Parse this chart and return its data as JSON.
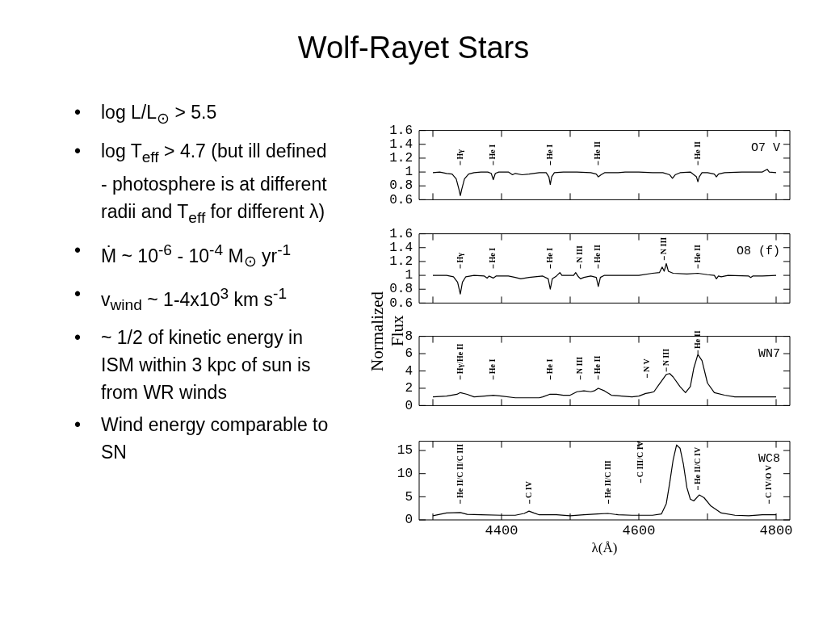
{
  "chart_data": [
    {
      "type": "other",
      "title": "Wolf-Rayet Stars",
      "annotations": [
        "• log L/L$_{⊙}$ > 5.5",
        "• log T$_{eff}$ > 4.7 (but ill defined - photosphere is at different radii and T$_{eff}$ for different λ)",
        "• Ṁ ~ 10$^{-6}$ - 10$^{-4}$ M$_{⊙}$ yr$^{-1}$",
        "• v$_{wind}$ ~ 1-4x10$^{3}$ km s$^{-1}$",
        "• ~ 1/2 of kinetic energy in ISM within 3 kpc of sun is from WR winds",
        "• Wind energy comparable to SN"
      ]
    },
    {
      "type": "line",
      "marker": "none",
      "tick_labels": "y",
      "xlim": [
        4280,
        4820
      ],
      "xticks": [
        {
          "value": 4300,
          "label": null
        },
        {
          "value": 4400,
          "label": null
        },
        {
          "value": 4500,
          "label": null
        },
        {
          "value": 4600,
          "label": null
        },
        {
          "value": 4700,
          "label": null
        },
        {
          "value": 4800,
          "label": null
        }
      ],
      "ylim": [
        0.6,
        1.6
      ],
      "yticks": [
        0.6,
        0.8,
        1,
        1.2,
        1.4,
        1.6
      ],
      "x": [
        4300,
        4310,
        4320,
        4328,
        4334,
        4338,
        4340,
        4342,
        4346,
        4352,
        4360,
        4370,
        4380,
        4385,
        4388,
        4391,
        4396,
        4410,
        4416,
        4420,
        4430,
        4440,
        4455,
        4465,
        4469,
        4471,
        4473,
        4477,
        4490,
        4510,
        4530,
        4538,
        4541,
        4545,
        4550,
        4570,
        4580,
        4600,
        4620,
        4635,
        4645,
        4649,
        4653,
        4660,
        4675,
        4684,
        4686,
        4688,
        4692,
        4700,
        4710,
        4713,
        4716,
        4725,
        4750,
        4780,
        4787,
        4790,
        4800
      ],
      "series": [
        {
          "color": "#000000",
          "values": [
            0.99,
            1.0,
            0.98,
            0.97,
            0.9,
            0.75,
            0.66,
            0.75,
            0.9,
            0.97,
            0.99,
            1.0,
            1.0,
            0.98,
            0.89,
            0.98,
            1.0,
            1.0,
            0.96,
            0.98,
            0.96,
            0.97,
            0.99,
            0.99,
            0.93,
            0.82,
            0.93,
            0.99,
            1.0,
            1.0,
            0.99,
            0.97,
            0.93,
            0.96,
            0.99,
            0.99,
            1.0,
            1.0,
            0.99,
            0.99,
            0.96,
            0.91,
            0.96,
            0.99,
            1.0,
            0.93,
            0.86,
            0.93,
            0.99,
            0.99,
            0.97,
            0.93,
            0.97,
            0.99,
            1.0,
            1.0,
            1.04,
            1.0,
            0.99
          ]
        }
      ],
      "annotations": [
        "O7 V",
        "Hγ",
        "He I",
        "He I",
        "He II",
        "He II"
      ]
    },
    {
      "type": "line",
      "marker": "none",
      "tick_labels": "y",
      "xlim": [
        4280,
        4820
      ],
      "xticks": [
        {
          "value": 4300,
          "label": null
        },
        {
          "value": 4400,
          "label": null
        },
        {
          "value": 4500,
          "label": null
        },
        {
          "value": 4600,
          "label": null
        },
        {
          "value": 4700,
          "label": null
        },
        {
          "value": 4800,
          "label": null
        }
      ],
      "ylim": [
        0.6,
        1.6
      ],
      "yticks": [
        0.6,
        0.8,
        1,
        1.2,
        1.4,
        1.6
      ],
      "x": [
        4300,
        4320,
        4330,
        4336,
        4340,
        4343,
        4348,
        4360,
        4375,
        4379,
        4382,
        4386,
        4388,
        4392,
        4410,
        4420,
        4428,
        4440,
        4460,
        4468,
        4471,
        4474,
        4480,
        4485,
        4488,
        4500,
        4505,
        4508,
        4512,
        4515,
        4520,
        4530,
        4538,
        4541,
        4544,
        4550,
        4580,
        4600,
        4620,
        4630,
        4634,
        4637,
        4640,
        4643,
        4650,
        4670,
        4686,
        4700,
        4710,
        4713,
        4716,
        4720,
        4730,
        4760,
        4763,
        4766,
        4780,
        4800
      ],
      "series": [
        {
          "color": "#000000",
          "values": [
            1.0,
            1.0,
            0.98,
            0.9,
            0.73,
            0.9,
            0.98,
            1.0,
            0.99,
            0.96,
            0.99,
            0.97,
            0.96,
            0.99,
            0.99,
            0.97,
            0.95,
            0.97,
            0.99,
            0.95,
            0.8,
            0.95,
            0.99,
            1.04,
            1.0,
            1.0,
            1.0,
            1.04,
            0.98,
            0.95,
            0.97,
            0.99,
            0.97,
            0.84,
            0.97,
            1.0,
            1.0,
            1.0,
            1.03,
            1.04,
            1.12,
            1.06,
            1.17,
            1.06,
            1.03,
            1.02,
            1.03,
            1.01,
            1.0,
            0.95,
            0.99,
            0.98,
            1.0,
            0.99,
            0.97,
            0.99,
            0.99,
            1.0
          ]
        }
      ],
      "annotations": [
        "O8 (f)",
        "Hγ",
        "He I",
        "He I",
        "N III",
        "He II",
        "N III",
        "He II"
      ]
    },
    {
      "type": "line",
      "marker": "none",
      "tick_labels": "y",
      "ylabel": "Normalized Flux",
      "xlim": [
        4280,
        4820
      ],
      "xticks": [
        {
          "value": 4300,
          "label": null
        },
        {
          "value": 4400,
          "label": null
        },
        {
          "value": 4500,
          "label": null
        },
        {
          "value": 4600,
          "label": null
        },
        {
          "value": 4700,
          "label": null
        },
        {
          "value": 4800,
          "label": null
        }
      ],
      "ylim": [
        0,
        8
      ],
      "yticks": [
        0,
        2,
        4,
        6,
        8
      ],
      "x": [
        4300,
        4320,
        4335,
        4340,
        4350,
        4360,
        4375,
        4388,
        4400,
        4420,
        4440,
        4455,
        4460,
        4470,
        4480,
        4490,
        4500,
        4510,
        4520,
        4530,
        4535,
        4541,
        4550,
        4560,
        4575,
        4590,
        4600,
        4610,
        4617,
        4622,
        4630,
        4640,
        4645,
        4650,
        4660,
        4668,
        4675,
        4680,
        4686,
        4692,
        4700,
        4710,
        4725,
        4740,
        4770,
        4800
      ],
      "series": [
        {
          "color": "#000000",
          "values": [
            1.0,
            1.1,
            1.3,
            1.5,
            1.3,
            1.0,
            1.1,
            1.2,
            1.1,
            0.9,
            0.9,
            0.9,
            1.0,
            1.3,
            1.3,
            1.2,
            1.2,
            1.6,
            1.7,
            1.6,
            1.7,
            2.0,
            1.7,
            1.2,
            1.1,
            1.0,
            1.1,
            1.4,
            1.5,
            1.6,
            2.5,
            3.6,
            3.7,
            3.3,
            2.2,
            1.5,
            2.2,
            4.3,
            5.9,
            5.2,
            2.6,
            1.5,
            1.2,
            1.0,
            1.0,
            1.0
          ]
        }
      ],
      "annotations": [
        "WN7",
        "Hγ/He II",
        "He I",
        "He I",
        "N III",
        "He II",
        "N V",
        "N III",
        "He II"
      ]
    },
    {
      "type": "line",
      "marker": "none",
      "xlabel": "λ(Å)",
      "xlim": [
        4280,
        4820
      ],
      "xticks": [
        {
          "value": 4300,
          "label": null
        },
        4400,
        {
          "value": 4500,
          "label": null
        },
        4600,
        {
          "value": 4700,
          "label": null
        },
        4800
      ],
      "ylim": [
        0,
        17
      ],
      "yticks": [
        0,
        5,
        10,
        15
      ],
      "x": [
        4300,
        4320,
        4340,
        4350,
        4370,
        4400,
        4420,
        4433,
        4440,
        4447,
        4455,
        4480,
        4500,
        4520,
        4540,
        4555,
        4570,
        4590,
        4620,
        4633,
        4640,
        4645,
        4650,
        4655,
        4660,
        4665,
        4670,
        4675,
        4680,
        4688,
        4695,
        4705,
        4720,
        4740,
        4760,
        4780,
        4800
      ],
      "series": [
        {
          "color": "#000000",
          "values": [
            0.9,
            1.5,
            1.6,
            1.2,
            1.1,
            1.0,
            1.0,
            1.4,
            1.9,
            1.5,
            1.1,
            1.1,
            0.9,
            1.1,
            1.3,
            1.4,
            1.1,
            1.0,
            1.0,
            1.3,
            3.5,
            8.0,
            13,
            16.2,
            15.5,
            12.0,
            7.0,
            4.5,
            4.1,
            5.4,
            4.8,
            3.0,
            1.5,
            1.0,
            0.9,
            1.1,
            1.1
          ]
        }
      ],
      "annotations": [
        "WC8",
        "He II/C II/C III",
        "C IV",
        "He II/C III",
        "C III/C IV",
        "He II/C IV",
        "C IV/O V"
      ]
    }
  ]
}
